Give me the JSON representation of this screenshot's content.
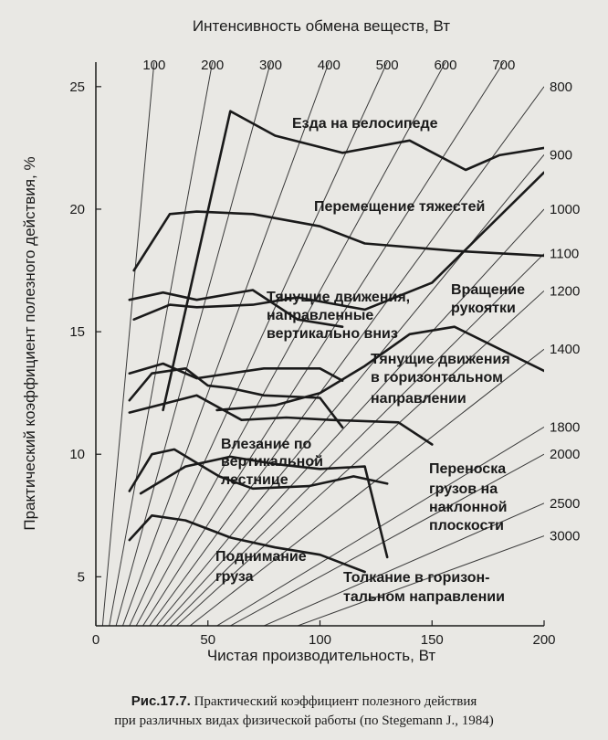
{
  "chart_data": {
    "type": "line",
    "title": "",
    "xlabel": "Чистая производительность, Вт",
    "ylabel": "Практический коэффициент полезного действия, %",
    "top_axis_label": "Интенсивность обмена веществ, Вт",
    "xlim": [
      0,
      200
    ],
    "ylim": [
      3,
      26
    ],
    "x_ticks": [
      0,
      50,
      100,
      150,
      200
    ],
    "y_ticks": [
      5,
      10,
      15,
      20,
      25
    ],
    "grid": false,
    "metabolic_lines": [
      {
        "label": "100",
        "value": 100
      },
      {
        "label": "200",
        "value": 200
      },
      {
        "label": "300",
        "value": 300
      },
      {
        "label": "400",
        "value": 400
      },
      {
        "label": "500",
        "value": 500
      },
      {
        "label": "600",
        "value": 600
      },
      {
        "label": "700",
        "value": 700
      },
      {
        "label": "800",
        "value": 800
      },
      {
        "label": "900",
        "value": 900
      },
      {
        "label": "1000",
        "value": 1000
      },
      {
        "label": "1100",
        "value": 1100
      },
      {
        "label": "1200",
        "value": 1200
      },
      {
        "label": "1400",
        "value": 1400
      },
      {
        "label": "1800",
        "value": 1800
      },
      {
        "label": "2000",
        "value": 2000
      },
      {
        "label": "2500",
        "value": 2500
      },
      {
        "label": "3000",
        "value": 3000
      }
    ],
    "series": [
      {
        "name": "Езда на велосипеде",
        "x": [
          30,
          60,
          80,
          110,
          140,
          165,
          180,
          200
        ],
        "y": [
          11.8,
          24,
          23,
          22.3,
          22.8,
          21.6,
          22.2,
          22.5
        ]
      },
      {
        "name": "Езда на велосипеде",
        "x": [
          54,
          80,
          100,
          120,
          140,
          160,
          200
        ],
        "y": [
          11.8,
          12,
          12.5,
          13.6,
          14.9,
          15.2,
          13.4
        ]
      },
      {
        "name": "Перемещение тяжестей",
        "x": [
          17,
          33,
          45,
          70,
          100,
          120,
          160,
          200
        ],
        "y": [
          17.5,
          19.8,
          19.9,
          19.8,
          19.3,
          18.6,
          18.3,
          18.1
        ]
      },
      {
        "name": "Вращение рукоятки",
        "x": [
          17,
          33,
          45,
          70,
          90,
          120,
          150,
          200
        ],
        "y": [
          15.5,
          16.1,
          16.0,
          16.1,
          16.4,
          15.9,
          17.0,
          21.5
        ]
      },
      {
        "name": "Тянущие движения, направленные вертикально вниз",
        "x": [
          15,
          30,
          45,
          70,
          90,
          110
        ],
        "y": [
          16.3,
          16.6,
          16.3,
          16.7,
          15.5,
          15.2
        ]
      },
      {
        "name": "Тянущие движения в горизонтальном направлении",
        "x": [
          15,
          30,
          45,
          75,
          100,
          110
        ],
        "y": [
          13.3,
          13.7,
          13.1,
          13.5,
          13.5,
          13.0
        ]
      },
      {
        "name": "Влезание по вертикальной лестнице",
        "x": [
          15,
          25,
          40,
          50,
          60,
          75,
          100,
          110
        ],
        "y": [
          12.2,
          13.3,
          13.5,
          12.8,
          12.7,
          12.4,
          12.3,
          11.1
        ]
      },
      {
        "name": "Переноска грузов на наклонной плоскости",
        "x": [
          15,
          45,
          65,
          85,
          105,
          135,
          150
        ],
        "y": [
          11.7,
          12.4,
          11.4,
          11.5,
          11.4,
          11.3,
          10.4
        ]
      },
      {
        "name": "Поднимание груза",
        "x": [
          15,
          25,
          35,
          55,
          70,
          95,
          115,
          130
        ],
        "y": [
          8.5,
          10.0,
          10.2,
          9.1,
          8.6,
          8.7,
          9.1,
          8.8
        ]
      },
      {
        "name": "Толкание в горизонтальном направлении",
        "x": [
          20,
          40,
          60,
          80,
          100,
          120,
          130
        ],
        "y": [
          8.4,
          9.5,
          9.9,
          9.6,
          9.4,
          9.5,
          5.8
        ]
      },
      {
        "name": "Толкание в горизонтальном направлении",
        "x": [
          15,
          25,
          40,
          60,
          80,
          100,
          120
        ],
        "y": [
          6.5,
          7.5,
          7.3,
          6.6,
          6.2,
          5.9,
          5.2
        ]
      }
    ],
    "annotations": [
      {
        "text": "Езда на велосипеде"
      },
      {
        "text": "Перемещение тяжестей"
      },
      {
        "text": "Тянущие движения,"
      },
      {
        "text": "направленные"
      },
      {
        "text": "вертикально вниз"
      },
      {
        "text": "Вращение"
      },
      {
        "text": "рукоятки"
      },
      {
        "text": "Тянущие движения"
      },
      {
        "text": "в горизонтальном"
      },
      {
        "text": "направлении"
      },
      {
        "text": "Влезание по"
      },
      {
        "text": "вертикальной"
      },
      {
        "text": "лестнице"
      },
      {
        "text": "Переноска"
      },
      {
        "text": "грузов на"
      },
      {
        "text": "наклонной"
      },
      {
        "text": "плоскости"
      },
      {
        "text": "Поднимание"
      },
      {
        "text": "груза"
      },
      {
        "text": "Толкание в горизон-"
      },
      {
        "text": "тальном направлении"
      }
    ]
  },
  "caption": {
    "label": "Рис.17.7.",
    "line1": "Практический коэффициент полезного действия",
    "line2": "при различных видах физической работы (по Stegemann J., 1984)"
  }
}
